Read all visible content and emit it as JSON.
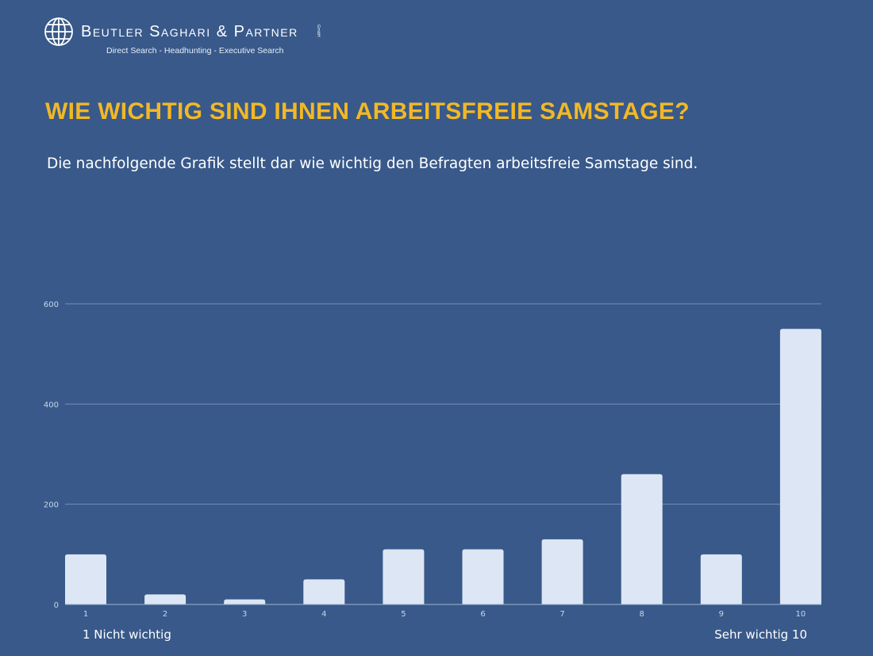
{
  "header": {
    "brand": "Beutler Saghari & Partner",
    "gmbh": "GmbH",
    "tagline": "Direct Search - Headhunting - Executive Search"
  },
  "title": "WIE WICHTIG SIND IHNEN ARBEITSFREIE SAMSTAGE?",
  "subtitle": "Die nachfolgende Grafik stellt dar wie wichtig den Befragten arbeitsfreie Samstage sind.",
  "scale_notes": {
    "low": "1 Nicht wichtig",
    "high": "Sehr wichtig 10"
  },
  "colors": {
    "background": "#38598a",
    "bar": "#dde6f4",
    "title": "#f2b825",
    "grid": "#7890b5"
  },
  "chart_data": {
    "type": "bar",
    "title": "WIE WICHTIG SIND IHNEN ARBEITSFREIE SAMSTAGE?",
    "xlabel": "",
    "ylabel": "",
    "categories": [
      "1",
      "2",
      "3",
      "4",
      "5",
      "6",
      "7",
      "8",
      "9",
      "10"
    ],
    "values": [
      100,
      20,
      10,
      50,
      110,
      110,
      130,
      260,
      100,
      550
    ],
    "ylim": [
      0,
      600
    ],
    "yticks": [
      0,
      200,
      400,
      600
    ],
    "grid": true,
    "legend": "none"
  }
}
